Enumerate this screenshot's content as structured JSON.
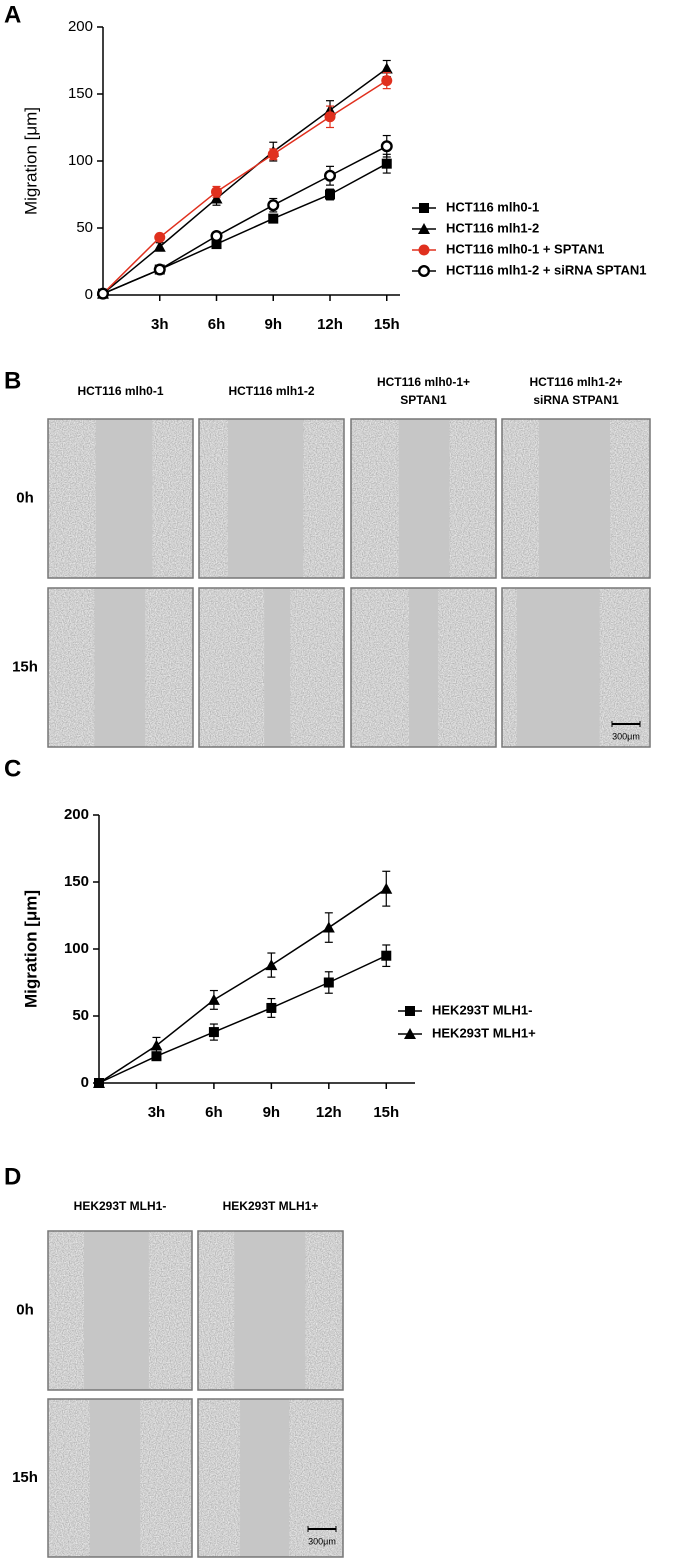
{
  "chart_data": [
    {
      "type": "line",
      "y_label": "Migration [μm]",
      "x": [
        0,
        3,
        6,
        9,
        12,
        15
      ],
      "xlim": [
        0,
        15.7
      ],
      "xticks": [
        {
          "value": 3,
          "label": "3h"
        },
        {
          "value": 6,
          "label": "6h"
        },
        {
          "value": 9,
          "label": "9h"
        },
        {
          "value": 12,
          "label": "12h"
        },
        {
          "value": 15,
          "label": "15h"
        }
      ],
      "ylim": [
        0,
        200
      ],
      "yticks": [
        0,
        50,
        100,
        150,
        200
      ],
      "legend": "right",
      "series": [
        {
          "name": "HCT116 mlh0-1",
          "color": "#000000",
          "marker": "square",
          "values": [
            1,
            19,
            38,
            57,
            75,
            98
          ],
          "errors": [
            1,
            2,
            3,
            3,
            4,
            7
          ]
        },
        {
          "name": "HCT116 mlh1-2",
          "color": "#000000",
          "marker": "triangle",
          "values": [
            1,
            36,
            72,
            107,
            138,
            169
          ],
          "errors": [
            1,
            3,
            5,
            7,
            7,
            6
          ]
        },
        {
          "name": "HCT116 mlh0-1 + SPTAN1",
          "color": "#e0301e",
          "marker": "circle",
          "values": [
            1,
            43,
            77,
            105,
            133,
            160
          ],
          "errors": [
            1,
            2,
            4,
            4,
            8,
            6
          ]
        },
        {
          "name": "HCT116 mlh1-2 + siRNA SPTAN1",
          "color": "#000000",
          "marker": "open-circle",
          "values": [
            1,
            19,
            44,
            67,
            89,
            111
          ],
          "errors": [
            1,
            2,
            3,
            5,
            7,
            8
          ]
        }
      ]
    },
    {
      "type": "line",
      "y_label": "Migration [μm]",
      "x": [
        0,
        3,
        6,
        9,
        12,
        15
      ],
      "xlim": [
        0,
        16.5
      ],
      "xticks": [
        {
          "value": 3,
          "label": "3h"
        },
        {
          "value": 6,
          "label": "6h"
        },
        {
          "value": 9,
          "label": "9h"
        },
        {
          "value": 12,
          "label": "12h"
        },
        {
          "value": 15,
          "label": "15h"
        }
      ],
      "ylim": [
        0,
        200
      ],
      "yticks": [
        0,
        50,
        100,
        150,
        200
      ],
      "legend": "right",
      "series": [
        {
          "name": "HEK293T MLH1-",
          "color": "#000000",
          "marker": "square",
          "values": [
            0,
            20,
            38,
            56,
            75,
            95
          ],
          "errors": [
            0,
            3,
            6,
            7,
            8,
            8
          ]
        },
        {
          "name": "HEK293T MLH1+",
          "color": "#000000",
          "marker": "triangle",
          "values": [
            0,
            28,
            62,
            88,
            116,
            145
          ],
          "errors": [
            0,
            6,
            7,
            9,
            11,
            13
          ]
        }
      ]
    }
  ],
  "panel_labels": [
    "A",
    "B",
    "C",
    "D"
  ],
  "image_panels": [
    {
      "columns": [
        [
          "HCT116 mlh0-1"
        ],
        [
          "HCT116 mlh1-2"
        ],
        [
          "HCT116 mlh0-1+",
          "SPTAN1"
        ],
        [
          "HCT116 mlh1-2+",
          "siRNA STPAN1"
        ]
      ],
      "rows": [
        "0h",
        "15h"
      ],
      "scale_bar": "300μm"
    },
    {
      "columns": [
        [
          "HEK293T MLH1-"
        ],
        [
          "HEK293T MLH1+"
        ]
      ],
      "rows": [
        "0h",
        "15h"
      ],
      "scale_bar": "300μm"
    }
  ]
}
